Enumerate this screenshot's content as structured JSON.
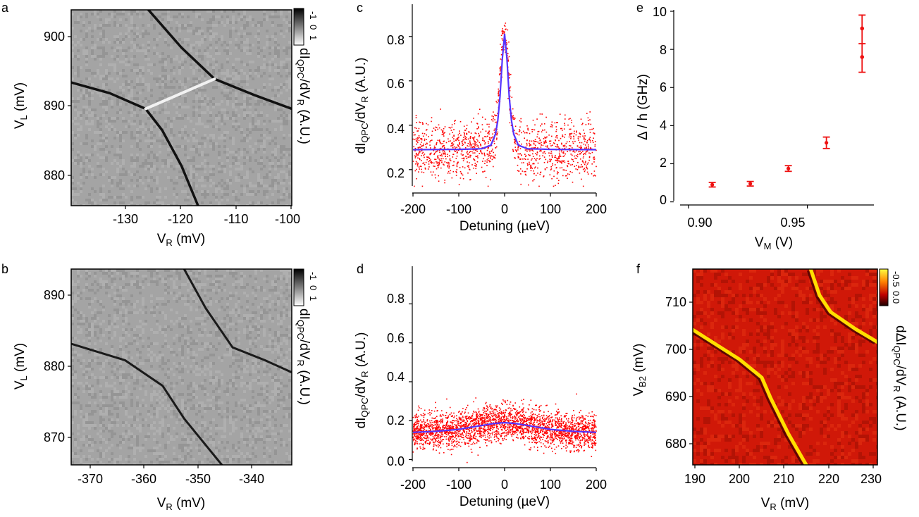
{
  "panels": {
    "a": {
      "label": "a",
      "xlabel": {
        "main": "V",
        "sub": "R",
        "tail": " (mV)"
      },
      "ylabel": {
        "main": "V",
        "sub": "L",
        "tail": " (mV)"
      },
      "xticks": [
        "-130",
        "-120",
        "-110",
        "-100"
      ],
      "yticks": [
        "900",
        "890",
        "880"
      ],
      "cbar_ticks": [
        "-1",
        "0",
        "1"
      ],
      "cbar_label": {
        "pre": "dI",
        "sub1": "QPC",
        "mid": "/dV",
        "sub2": "R",
        "tail": " (A.U.)"
      }
    },
    "b": {
      "label": "b",
      "xlabel": {
        "main": "V",
        "sub": "R",
        "tail": " (mV)"
      },
      "ylabel": {
        "main": "V",
        "sub": "L",
        "tail": " (mV)"
      },
      "xticks": [
        "-370",
        "-360",
        "-350",
        "-340"
      ],
      "yticks": [
        "890",
        "880",
        "870"
      ],
      "cbar_ticks": [
        "-1",
        "0",
        "1"
      ],
      "cbar_label": {
        "pre": "dI",
        "sub1": "QPC",
        "mid": "/dV",
        "sub2": "R",
        "tail": " (A.U.)"
      }
    },
    "c": {
      "label": "c",
      "xlabel": "Detuning (µeV)",
      "ylabel": {
        "pre": "dI",
        "sub1": "QPC",
        "mid": "/dV",
        "sub2": "R",
        "tail": " (A.U.)"
      },
      "xticks": [
        "-200",
        "-100",
        "0",
        "100",
        "200"
      ],
      "yticks": [
        "0.2",
        "0.4",
        "0.6",
        "0.8"
      ]
    },
    "d": {
      "label": "d",
      "xlabel": "Detuning (µeV)",
      "ylabel": {
        "pre": "dI",
        "sub1": "QPC",
        "mid": "/dV",
        "sub2": "R",
        "tail": " (A.U.)"
      },
      "xticks": [
        "-200",
        "-100",
        "0",
        "100",
        "200"
      ],
      "yticks": [
        "0.0",
        "0.2",
        "0.4",
        "0.6",
        "0.8"
      ]
    },
    "e": {
      "label": "e",
      "xlabel": {
        "main": "V",
        "sub": "M",
        "tail": " (V)"
      },
      "ylabel": "Δ / h (GHz)",
      "xticks": [
        "0.90",
        "0.95"
      ],
      "yticks": [
        "0",
        "2",
        "4",
        "6",
        "8",
        "10"
      ]
    },
    "f": {
      "label": "f",
      "xlabel": {
        "main": "V",
        "sub": "R",
        "tail": " (mV)"
      },
      "ylabel": {
        "main": "V",
        "sub": "B2",
        "tail": " (mV)"
      },
      "xticks": [
        "190",
        "200",
        "210",
        "220",
        "230"
      ],
      "yticks": [
        "710",
        "700",
        "690",
        "680"
      ],
      "cbar_ticks": [
        "-0.5",
        "0.0"
      ],
      "cbar_label": {
        "pre": "dΔI",
        "sub1": "QPC",
        "mid": "/dV",
        "sub2": "R",
        "tail": " (A.U.)"
      }
    }
  },
  "colors": {
    "points": "#ff0000",
    "fit": "#5533ff",
    "errorbar": "#ee1111",
    "map_f_background": "#d01808",
    "map_f_line": "#ffe000"
  },
  "chart_data": [
    {
      "panel": "a",
      "type": "heatmap",
      "colormap": "grayscale",
      "xlim": [
        -139,
        -99
      ],
      "ylim": [
        876,
        903.5
      ],
      "zlim": [
        -1,
        1
      ],
      "note_lines": [
        {
          "kind": "dark",
          "points": [
            [
              -139,
              893.3
            ],
            [
              -132,
              891.8
            ],
            [
              -125.5,
              889.6
            ]
          ]
        },
        {
          "kind": "dark",
          "points": [
            [
              -125.5,
              889.6
            ],
            [
              -122.5,
              886.6
            ],
            [
              -119,
              881.6
            ],
            [
              -116,
              876
            ]
          ]
        },
        {
          "kind": "dark",
          "points": [
            [
              -125,
              903.5
            ],
            [
              -119,
              898.2
            ],
            [
              -113,
              893.8
            ]
          ]
        },
        {
          "kind": "dark",
          "points": [
            [
              -113,
              893.8
            ],
            [
              -106,
              891.6
            ],
            [
              -99,
              889.6
            ]
          ]
        },
        {
          "kind": "bright",
          "points": [
            [
              -125.5,
              889.6
            ],
            [
              -113,
              893.8
            ]
          ]
        }
      ]
    },
    {
      "panel": "b",
      "type": "heatmap",
      "colormap": "grayscale",
      "xlim": [
        -376,
        -335
      ],
      "ylim": [
        866.5,
        894
      ],
      "zlim": [
        -1,
        1
      ],
      "note_lines": [
        {
          "kind": "dark",
          "points": [
            [
              -376,
              883.5
            ],
            [
              -366,
              881.2
            ],
            [
              -359,
              877.6
            ],
            [
              -355,
              873
            ],
            [
              -348,
              866.5
            ]
          ]
        },
        {
          "kind": "dark",
          "points": [
            [
              -355,
              894
            ],
            [
              -351,
              888.5
            ],
            [
              -346,
              883
            ],
            [
              -340,
              881.2
            ],
            [
              -335,
              879.5
            ]
          ]
        }
      ]
    },
    {
      "panel": "c",
      "type": "scatter",
      "xlim": [
        -200,
        200
      ],
      "ylim": [
        0.12,
        0.92
      ],
      "series": [
        {
          "kind": "points",
          "model": {
            "baseline": 0.29,
            "peak": 0.81,
            "center": 0,
            "width_ueV": 10,
            "noise_sd": 0.065,
            "count": 1400
          }
        },
        {
          "kind": "fit",
          "x": [
            -200,
            -100,
            -50,
            -30,
            -20,
            -15,
            -10,
            -5,
            0,
            5,
            10,
            15,
            20,
            30,
            50,
            100,
            200
          ],
          "y": [
            0.29,
            0.291,
            0.294,
            0.31,
            0.36,
            0.42,
            0.53,
            0.7,
            0.81,
            0.7,
            0.53,
            0.42,
            0.36,
            0.31,
            0.294,
            0.291,
            0.29
          ]
        }
      ]
    },
    {
      "panel": "d",
      "type": "scatter",
      "xlim": [
        -200,
        200
      ],
      "ylim": [
        -0.02,
        0.95
      ],
      "series": [
        {
          "kind": "points",
          "model": {
            "baseline": 0.14,
            "peak": 0.19,
            "center": 0,
            "width_ueV": 70,
            "noise_sd": 0.045,
            "count": 2800
          }
        },
        {
          "kind": "fit",
          "x": [
            -200,
            -150,
            -100,
            -50,
            -25,
            0,
            25,
            50,
            100,
            150,
            200
          ],
          "y": [
            0.14,
            0.145,
            0.155,
            0.175,
            0.185,
            0.19,
            0.185,
            0.175,
            0.155,
            0.145,
            0.14
          ]
        }
      ]
    },
    {
      "panel": "e",
      "type": "scatter",
      "xlim": [
        0.895,
        0.975
      ],
      "ylim": [
        -0.2,
        10
      ],
      "series": [
        {
          "kind": "errorbar",
          "x": [
            0.91,
            0.926,
            0.942,
            0.958,
            0.973
          ],
          "y": [
            0.9,
            0.95,
            1.75,
            3.1,
            8.3
          ],
          "yerr": [
            0.12,
            0.12,
            0.15,
            0.3,
            1.5
          ],
          "extra_points": [
            [
              0.973,
              9.1
            ],
            [
              0.973,
              7.6
            ]
          ]
        }
      ]
    },
    {
      "panel": "f",
      "type": "heatmap",
      "colormap": "red-yellow",
      "xlim": [
        189.5,
        231
      ],
      "ylim": [
        675.5,
        716.5
      ],
      "zlim": [
        -0.5,
        0.0
      ],
      "note_lines": [
        {
          "kind": "bright",
          "points": [
            [
              189.5,
              703.8
            ],
            [
              200,
              697.6
            ],
            [
              205,
              693.8
            ],
            [
              207,
              689.5
            ],
            [
              211,
              682
            ],
            [
              215,
              675.5
            ]
          ]
        },
        {
          "kind": "bright",
          "points": [
            [
              216,
              716.5
            ],
            [
              218,
              711
            ],
            [
              220.5,
              707.5
            ],
            [
              226,
              704
            ],
            [
              231,
              701.2
            ]
          ]
        }
      ]
    }
  ]
}
